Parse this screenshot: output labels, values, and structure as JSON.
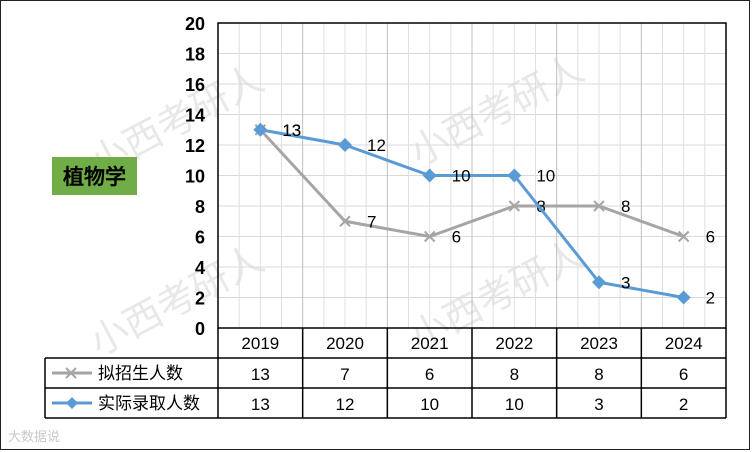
{
  "subject_label": "植物学",
  "watermark_text": "小西考研人",
  "footer_watermark": "大数据说",
  "chart_data": {
    "type": "line",
    "categories": [
      "2019",
      "2020",
      "2021",
      "2022",
      "2023",
      "2024"
    ],
    "ylim": [
      0,
      20
    ],
    "yticks": [
      0,
      2,
      4,
      6,
      8,
      10,
      12,
      14,
      16,
      18,
      20
    ],
    "grid": true,
    "series": [
      {
        "name": "拟招生人数",
        "values": [
          13,
          7,
          6,
          8,
          8,
          6
        ],
        "color": "#a5a5a5",
        "marker": "x"
      },
      {
        "name": "实际录取人数",
        "values": [
          13,
          12,
          10,
          10,
          3,
          2
        ],
        "color": "#5b9bd5",
        "marker": "diamond"
      }
    ],
    "table": true
  }
}
